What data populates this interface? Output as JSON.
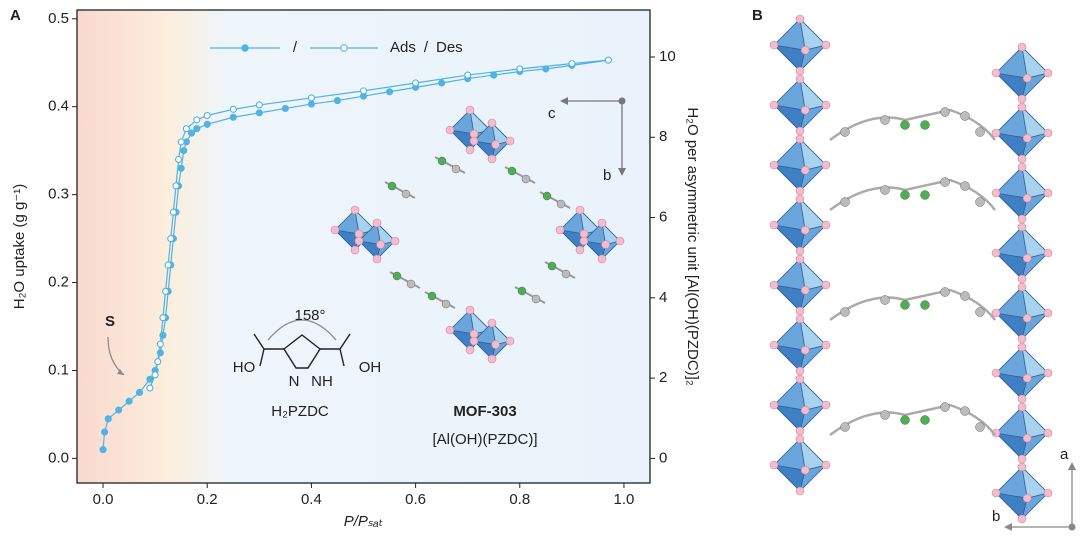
{
  "chart_data": {
    "type": "line",
    "panel_label": "A",
    "x_label": "P/Pₛₐₜ",
    "y_label": "H₂O uptake (g g⁻¹)",
    "y2_label": "H₂O per asymmetric unit [Al(OH)(PZDC)]₂",
    "xlim": [
      -0.05,
      1.05
    ],
    "ylim": [
      -0.028,
      0.51
    ],
    "y2lim": [
      -0.613,
      11.17
    ],
    "xticks": [
      {
        "value": 0,
        "label": "0.0"
      },
      0.2,
      0.4,
      0.6,
      0.8,
      {
        "value": 1,
        "label": "1.0"
      }
    ],
    "yticks": [
      {
        "value": 0,
        "label": "0.0"
      },
      0.1,
      0.2,
      0.3,
      0.4,
      0.5
    ],
    "y2ticks": [
      0,
      2,
      4,
      6,
      8,
      10
    ],
    "legend_separator": "/",
    "series": [
      {
        "name": "Ads",
        "color": "#4fb3e3",
        "marker": "filled",
        "x": [
          0.0,
          0.003,
          0.01,
          0.03,
          0.05,
          0.07,
          0.09,
          0.1,
          0.11,
          0.115,
          0.12,
          0.125,
          0.13,
          0.135,
          0.14,
          0.145,
          0.15,
          0.155,
          0.16,
          0.17,
          0.18,
          0.2,
          0.25,
          0.3,
          0.35,
          0.4,
          0.45,
          0.5,
          0.55,
          0.6,
          0.65,
          0.7,
          0.75,
          0.8,
          0.85,
          0.9,
          0.97
        ],
        "values": [
          0.01,
          0.03,
          0.045,
          0.055,
          0.065,
          0.075,
          0.09,
          0.1,
          0.12,
          0.14,
          0.16,
          0.19,
          0.22,
          0.25,
          0.28,
          0.31,
          0.33,
          0.35,
          0.36,
          0.37,
          0.375,
          0.38,
          0.388,
          0.393,
          0.398,
          0.403,
          0.407,
          0.412,
          0.417,
          0.422,
          0.427,
          0.432,
          0.436,
          0.44,
          0.443,
          0.447,
          0.453
        ]
      },
      {
        "name": "Des",
        "color": "#4fb3e3",
        "marker": "open",
        "x": [
          0.97,
          0.9,
          0.8,
          0.7,
          0.6,
          0.5,
          0.4,
          0.3,
          0.25,
          0.2,
          0.18,
          0.16,
          0.15,
          0.145,
          0.14,
          0.135,
          0.13,
          0.125,
          0.12,
          0.115,
          0.11,
          0.105,
          0.1,
          0.09
        ],
        "values": [
          0.453,
          0.449,
          0.443,
          0.436,
          0.427,
          0.418,
          0.41,
          0.402,
          0.397,
          0.39,
          0.385,
          0.375,
          0.36,
          0.34,
          0.31,
          0.28,
          0.25,
          0.22,
          0.19,
          0.16,
          0.13,
          0.11,
          0.095,
          0.08
        ]
      }
    ],
    "annotations": {
      "step": "S",
      "angle": "158°",
      "ho": "HO",
      "oh": "OH",
      "n": "N",
      "nh": "NH",
      "linker": "H₂PZDC",
      "mof": "MOF-303",
      "formula": "[Al(OH)(PZDC)]",
      "axis_c": "c",
      "axis_b": "b"
    }
  },
  "panel_b": {
    "label": "B",
    "axis_a": "a",
    "axis_b": "b"
  }
}
